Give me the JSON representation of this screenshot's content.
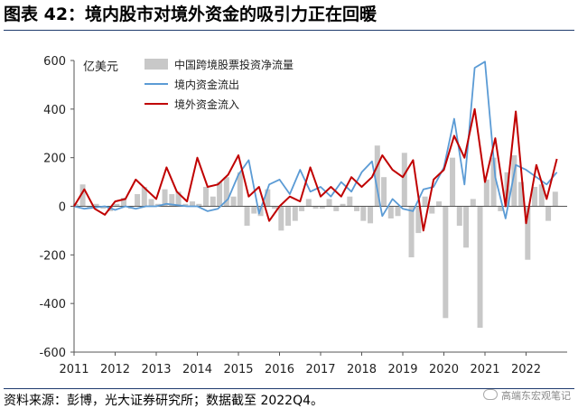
{
  "title": "图表 42：境内股市对境外资金的吸引力正在回暖",
  "source": "资料来源：彭博，光大证券研究所；数据截至 2022Q4。",
  "watermark": "高端东宏观笔记",
  "chart_data": {
    "type": "bar+line",
    "ylabel": "亿美元",
    "ylim": [
      -600,
      600
    ],
    "yticks": [
      -600,
      -400,
      -200,
      0,
      200,
      400,
      600
    ],
    "x_tick_labels": [
      "2011",
      "2012",
      "2013",
      "2014",
      "2015",
      "2016",
      "2017",
      "2018",
      "2019",
      "2020",
      "2021",
      "2022"
    ],
    "x_start": 2011.0,
    "x_end": 2023.0,
    "series": [
      {
        "name": "中国跨境股票投资净流量",
        "kind": "bar",
        "color": "#c8c8c8",
        "x": [
          2011.04,
          2011.21,
          2011.38,
          2011.54,
          2011.71,
          2011.88,
          2012.04,
          2012.21,
          2012.38,
          2012.54,
          2012.71,
          2012.88,
          2013.04,
          2013.21,
          2013.38,
          2013.54,
          2013.71,
          2013.88,
          2014.04,
          2014.21,
          2014.38,
          2014.54,
          2014.71,
          2014.88,
          2015.04,
          2015.21,
          2015.38,
          2015.54,
          2015.71,
          2015.88,
          2016.04,
          2016.21,
          2016.38,
          2016.54,
          2016.71,
          2016.88,
          2017.04,
          2017.21,
          2017.38,
          2017.54,
          2017.71,
          2017.88,
          2018.04,
          2018.21,
          2018.38,
          2018.54,
          2018.71,
          2018.88,
          2019.04,
          2019.21,
          2019.38,
          2019.54,
          2019.71,
          2019.88,
          2020.04,
          2020.21,
          2020.38,
          2020.54,
          2020.71,
          2020.88,
          2021.04,
          2021.21,
          2021.38,
          2021.54,
          2021.71,
          2021.88,
          2022.04,
          2022.21,
          2022.38,
          2022.54,
          2022.71,
          2022.88
        ],
        "values": [
          10,
          90,
          -10,
          10,
          -10,
          -20,
          10,
          35,
          -10,
          50,
          80,
          30,
          10,
          70,
          50,
          60,
          10,
          20,
          10,
          80,
          40,
          100,
          120,
          40,
          140,
          -80,
          -30,
          -40,
          70,
          -10,
          -100,
          -80,
          -60,
          -20,
          30,
          -10,
          -10,
          30,
          -20,
          10,
          40,
          -20,
          -60,
          -70,
          250,
          120,
          -50,
          -40,
          220,
          -210,
          -110,
          40,
          -30,
          20,
          -460,
          200,
          -80,
          -170,
          30,
          -500,
          110,
          200,
          -20,
          140,
          210,
          100,
          -220,
          80,
          90,
          -60,
          60,
          0
        ]
      },
      {
        "name": "境内资金流出",
        "kind": "line",
        "color": "#5b9bd5",
        "x": [
          2011.0,
          2011.25,
          2011.5,
          2011.75,
          2012.0,
          2012.25,
          2012.5,
          2012.75,
          2013.0,
          2013.25,
          2013.5,
          2013.75,
          2014.0,
          2014.25,
          2014.5,
          2014.75,
          2015.0,
          2015.25,
          2015.5,
          2015.75,
          2016.0,
          2016.25,
          2016.5,
          2016.75,
          2017.0,
          2017.25,
          2017.5,
          2017.75,
          2018.0,
          2018.25,
          2018.5,
          2018.75,
          2019.0,
          2019.25,
          2019.5,
          2019.75,
          2020.0,
          2020.25,
          2020.5,
          2020.75,
          2021.0,
          2021.25,
          2021.5,
          2021.75,
          2022.0,
          2022.25,
          2022.5,
          2022.75
        ],
        "values": [
          0,
          -10,
          -5,
          0,
          -15,
          0,
          -10,
          0,
          0,
          10,
          5,
          0,
          0,
          -20,
          -10,
          30,
          130,
          190,
          -30,
          90,
          110,
          50,
          150,
          60,
          80,
          40,
          100,
          60,
          140,
          185,
          -40,
          30,
          -10,
          -20,
          70,
          80,
          160,
          360,
          90,
          570,
          595,
          120,
          -50,
          170,
          150,
          120,
          90,
          140
        ]
      },
      {
        "name": "境外资金流入",
        "kind": "line",
        "color": "#c00000",
        "x": [
          2011.0,
          2011.25,
          2011.5,
          2011.75,
          2012.0,
          2012.25,
          2012.5,
          2012.75,
          2013.0,
          2013.25,
          2013.5,
          2013.75,
          2014.0,
          2014.25,
          2014.5,
          2014.75,
          2015.0,
          2015.25,
          2015.5,
          2015.75,
          2016.0,
          2016.25,
          2016.5,
          2016.75,
          2017.0,
          2017.25,
          2017.5,
          2017.75,
          2018.0,
          2018.25,
          2018.5,
          2018.75,
          2019.0,
          2019.25,
          2019.5,
          2019.75,
          2020.0,
          2020.25,
          2020.5,
          2020.75,
          2021.0,
          2021.25,
          2021.5,
          2021.75,
          2022.0,
          2022.25,
          2022.5,
          2022.75
        ],
        "values": [
          0,
          70,
          -10,
          -35,
          20,
          30,
          110,
          70,
          30,
          160,
          60,
          20,
          200,
          80,
          90,
          130,
          210,
          40,
          80,
          -60,
          0,
          40,
          20,
          160,
          40,
          80,
          40,
          120,
          80,
          120,
          210,
          150,
          120,
          190,
          -100,
          110,
          150,
          290,
          200,
          400,
          100,
          280,
          0,
          390,
          -70,
          170,
          30,
          195
        ]
      }
    ],
    "legend_position": "top-left-inside",
    "grid": false
  }
}
